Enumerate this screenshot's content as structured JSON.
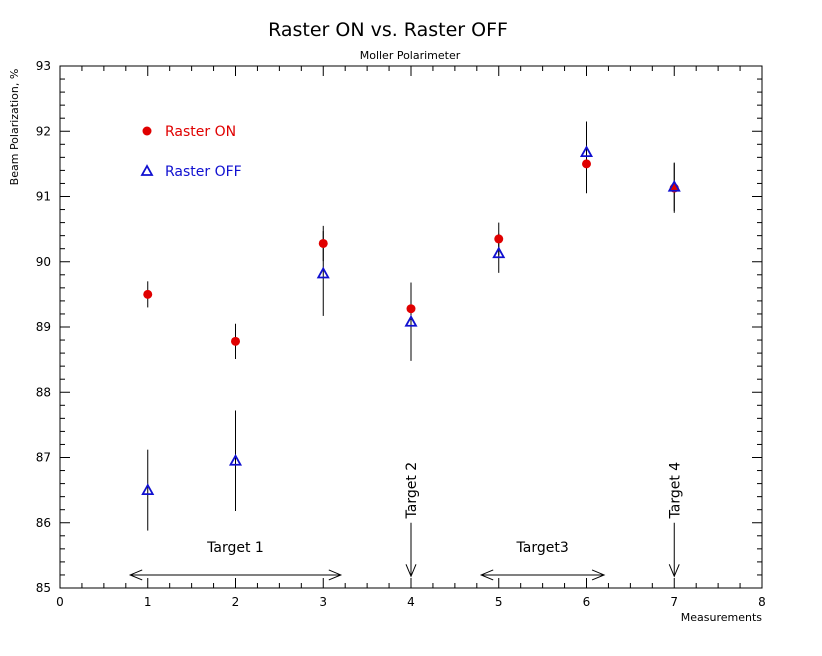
{
  "chart_data": {
    "type": "scatter",
    "title": "Raster ON vs. Raster OFF",
    "subtitle": "Moller Polarimeter",
    "xlabel": "Measurements",
    "ylabel": "Beam Polarization, %",
    "xlim": [
      0,
      8
    ],
    "ylim": [
      85,
      93
    ],
    "xticks": [
      "0",
      "1",
      "2",
      "3",
      "4",
      "5",
      "6",
      "7",
      "8"
    ],
    "yticks": [
      "85",
      "86",
      "87",
      "88",
      "89",
      "90",
      "91",
      "92",
      "93"
    ],
    "grid": false,
    "legend_position": "top-left",
    "series": [
      {
        "name": "Raster ON",
        "color": "#e00000",
        "marker": "circle",
        "points": [
          {
            "x": 1,
            "y": 89.5,
            "err": 0.2
          },
          {
            "x": 2,
            "y": 88.78,
            "err": 0.27
          },
          {
            "x": 3,
            "y": 90.28,
            "err": 0.27
          },
          {
            "x": 4,
            "y": 89.28,
            "err": 0.4
          },
          {
            "x": 5,
            "y": 90.35,
            "err": 0.25
          },
          {
            "x": 6,
            "y": 91.5,
            "err": 0.45
          },
          {
            "x": 7,
            "y": 91.13,
            "err": 0.38
          }
        ]
      },
      {
        "name": "Raster OFF",
        "color": "#1010d0",
        "marker": "triangle",
        "points": [
          {
            "x": 1,
            "y": 86.5,
            "err": 0.62
          },
          {
            "x": 2,
            "y": 86.95,
            "err": 0.77
          },
          {
            "x": 3,
            "y": 89.82,
            "err": 0.65
          },
          {
            "x": 4,
            "y": 89.08,
            "err": 0.6
          },
          {
            "x": 5,
            "y": 90.13,
            "err": 0.3
          },
          {
            "x": 6,
            "y": 91.68,
            "err": 0.47
          },
          {
            "x": 7,
            "y": 91.15,
            "err": 0.37
          }
        ]
      }
    ],
    "annotations": [
      {
        "label": "Target 1",
        "type": "range",
        "x_start": 0.8,
        "x_end": 3.2,
        "y": 85.2,
        "label_y": 85.55
      },
      {
        "label": "Target 2",
        "type": "point",
        "x": 4,
        "y_top": 86.0,
        "y_tip": 85.18,
        "label_y": 86.5
      },
      {
        "label": "Target3",
        "type": "range",
        "x_start": 4.8,
        "x_end": 6.2,
        "y": 85.2,
        "label_y": 85.55
      },
      {
        "label": "Target 4",
        "type": "point",
        "x": 7,
        "y_top": 86.0,
        "y_tip": 85.18,
        "label_y": 86.5
      }
    ]
  }
}
